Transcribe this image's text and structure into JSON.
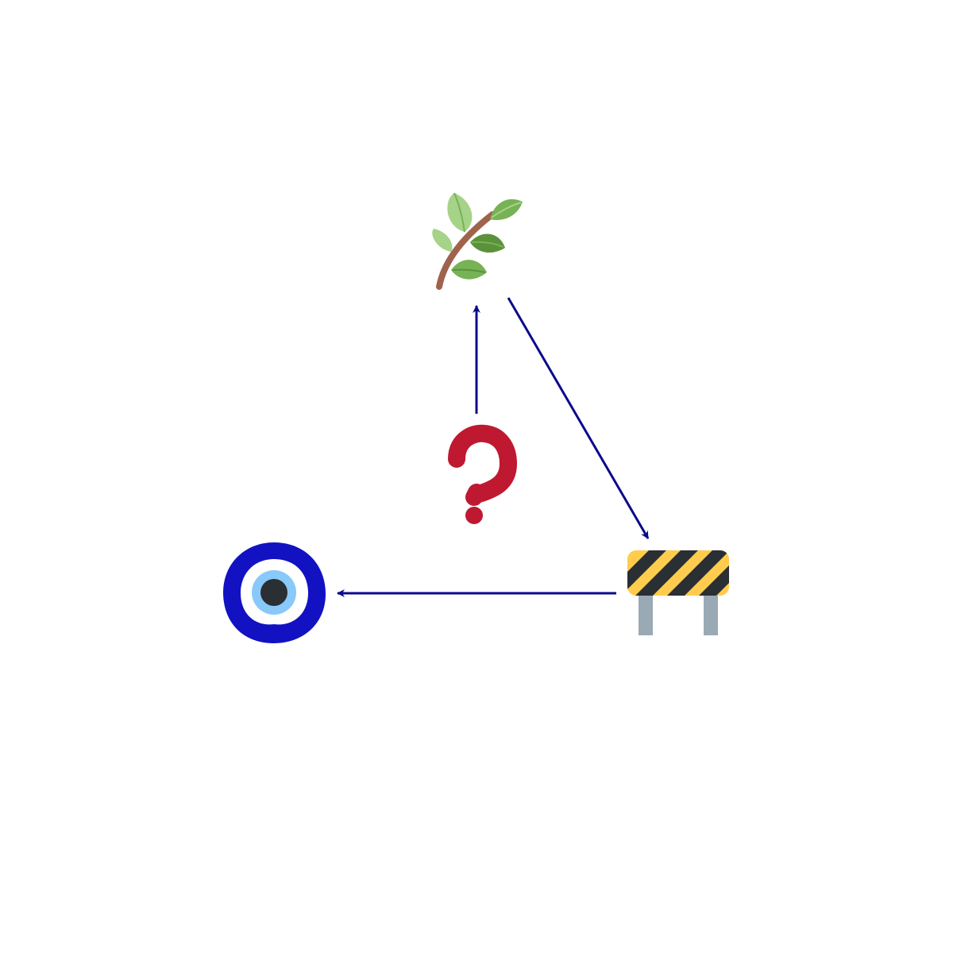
{
  "diagram": {
    "nodes": [
      {
        "id": "leaf",
        "icon": "leafy-branch-icon"
      },
      {
        "id": "question",
        "icon": "red-question-mark-icon"
      },
      {
        "id": "barrier",
        "icon": "construction-barrier-icon"
      },
      {
        "id": "eye",
        "icon": "nazar-amulet-icon"
      }
    ],
    "edges": [
      {
        "from": "question",
        "to": "leaf"
      },
      {
        "from": "leaf",
        "to": "barrier"
      },
      {
        "from": "barrier",
        "to": "eye"
      }
    ],
    "colors": {
      "arrow": "#0a0a8c",
      "leaf_light": "#a6d388",
      "leaf_mid": "#77b255",
      "leaf_dark": "#5c913b",
      "stem": "#a0624c",
      "question": "#be1931",
      "barrier_yellow": "#ffcc4d",
      "barrier_black": "#292f33",
      "barrier_legs": "#99aab5",
      "eye_outer": "#1212c2",
      "eye_white": "#ffffff",
      "eye_iris": "#88c9f9",
      "eye_pupil": "#292f33"
    }
  }
}
